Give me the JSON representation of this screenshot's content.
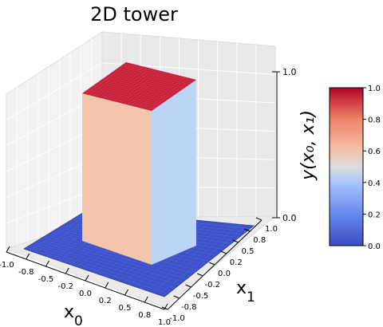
{
  "chart_data": {
    "type": "surface3d",
    "title": "2D tower",
    "xlabel": "x",
    "xlabel_sub": "0",
    "ylabel": "x",
    "ylabel_sub": "1",
    "zlabel": "y(x₀, x₁)",
    "xlim": [
      -1.0,
      1.0
    ],
    "ylim": [
      -1.0,
      1.0
    ],
    "zlim": [
      0.0,
      1.0
    ],
    "xticks": [
      "-1.0",
      "-0.8",
      "-0.5",
      "-0.2",
      "0.0",
      "0.2",
      "0.5",
      "0.8",
      "1.0"
    ],
    "yticks": [
      "-1.0",
      "-0.8",
      "-0.5",
      "-0.2",
      "0.0",
      "0.2",
      "0.5",
      "0.8",
      "1.0"
    ],
    "zticks": [
      "0.0",
      "1.0"
    ],
    "grid": true,
    "colormap": "coolwarm",
    "surface": {
      "base_height": 0.0,
      "tower_height": 1.0,
      "tower_x_range": [
        -0.5,
        0.5
      ],
      "tower_y_range": [
        -0.5,
        0.5
      ]
    },
    "colorbar": {
      "ticks": [
        "0.0",
        "0.2",
        "0.4",
        "0.6",
        "0.8",
        "1.0"
      ],
      "range": [
        0.0,
        1.0
      ]
    },
    "colors": {
      "top": "#c41e3a",
      "front_face": "#f4c4ad",
      "right_face": "#bcd4f6",
      "base": "#3d51c8"
    }
  }
}
